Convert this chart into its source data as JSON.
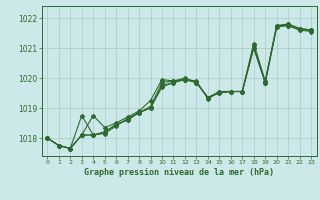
{
  "title": "Graphe pression niveau de la mer (hPa)",
  "background_color": "#cce8e8",
  "grid_color": "#aacccc",
  "line_color": "#2d6a2d",
  "xlim": [
    -0.5,
    23.5
  ],
  "ylim": [
    1017.4,
    1022.4
  ],
  "yticks": [
    1018,
    1019,
    1020,
    1021,
    1022
  ],
  "xticks": [
    0,
    1,
    2,
    3,
    4,
    5,
    6,
    7,
    8,
    9,
    10,
    11,
    12,
    13,
    14,
    15,
    16,
    17,
    18,
    19,
    20,
    21,
    22,
    23
  ],
  "series": [
    [
      1018.0,
      1017.75,
      1017.65,
      1018.1,
      1018.1,
      1018.15,
      1018.4,
      1018.65,
      1018.85,
      1019.05,
      1019.85,
      1019.9,
      1020.0,
      1019.85,
      1019.35,
      1019.55,
      1019.55,
      1019.55,
      1021.0,
      1019.85,
      1021.7,
      1021.75,
      1021.6,
      1021.6
    ],
    [
      1018.0,
      1017.75,
      1017.65,
      1018.75,
      1018.1,
      1018.2,
      1018.45,
      1018.6,
      1018.85,
      1019.0,
      1019.7,
      1019.85,
      1019.95,
      1019.9,
      1019.3,
      1019.55,
      1019.55,
      1019.55,
      1021.15,
      1019.9,
      1021.75,
      1021.8,
      1021.65,
      1021.6
    ],
    [
      1018.0,
      1017.75,
      1017.65,
      1018.1,
      1018.75,
      1018.35,
      1018.5,
      1018.7,
      1018.9,
      1019.25,
      1019.95,
      1019.9,
      1019.95,
      1019.85,
      1019.35,
      1019.5,
      1019.55,
      1019.55,
      1021.0,
      1019.85,
      1021.7,
      1021.8,
      1021.65,
      1021.6
    ],
    [
      1018.0,
      1017.75,
      1017.65,
      1018.1,
      1018.1,
      1018.2,
      1018.45,
      1018.6,
      1018.85,
      1019.0,
      1019.75,
      1019.85,
      1019.95,
      1019.85,
      1019.35,
      1019.5,
      1019.55,
      1019.55,
      1021.1,
      1019.85,
      1021.75,
      1021.75,
      1021.6,
      1021.55
    ]
  ]
}
